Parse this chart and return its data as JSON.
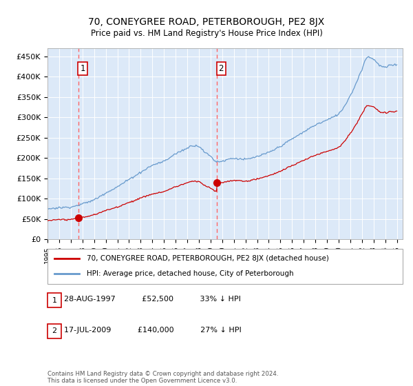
{
  "title": "70, CONEYGREE ROAD, PETERBOROUGH, PE2 8JX",
  "subtitle": "Price paid vs. HM Land Registry's House Price Index (HPI)",
  "xlim": [
    1995.0,
    2025.5
  ],
  "ylim": [
    0,
    470000
  ],
  "yticks": [
    0,
    50000,
    100000,
    150000,
    200000,
    250000,
    300000,
    350000,
    400000,
    450000
  ],
  "ytick_labels": [
    "£0",
    "£50K",
    "£100K",
    "£150K",
    "£200K",
    "£250K",
    "£300K",
    "£350K",
    "£400K",
    "£450K"
  ],
  "xtick_years": [
    1995,
    1996,
    1997,
    1998,
    1999,
    2000,
    2001,
    2002,
    2003,
    2004,
    2005,
    2006,
    2007,
    2008,
    2009,
    2010,
    2011,
    2012,
    2013,
    2014,
    2015,
    2016,
    2017,
    2018,
    2019,
    2020,
    2021,
    2022,
    2023,
    2024,
    2025
  ],
  "plot_bg_color": "#dce9f8",
  "hpi_line_color": "#6699cc",
  "price_line_color": "#cc0000",
  "marker_color": "#cc0000",
  "vline_color": "#ff6666",
  "purchase1_x": 1997.65,
  "purchase1_y": 52500,
  "purchase2_x": 2009.54,
  "purchase2_y": 140000,
  "legend_entries": [
    "70, CONEYGREE ROAD, PETERBOROUGH, PE2 8JX (detached house)",
    "HPI: Average price, detached house, City of Peterborough"
  ],
  "table_rows": [
    [
      "1",
      "28-AUG-1997",
      "£52,500",
      "33% ↓ HPI"
    ],
    [
      "2",
      "17-JUL-2009",
      "£140,000",
      "27% ↓ HPI"
    ]
  ],
  "footer": "Contains HM Land Registry data © Crown copyright and database right 2024.\nThis data is licensed under the Open Government Licence v3.0."
}
